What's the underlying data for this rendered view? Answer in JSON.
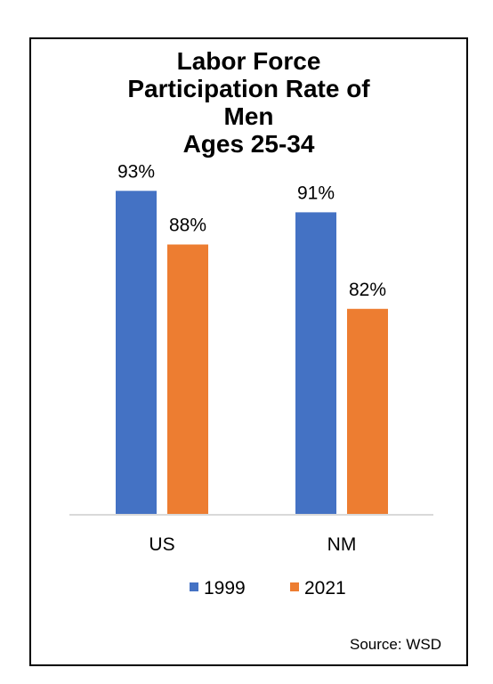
{
  "chart_data": {
    "type": "bar",
    "title_lines": [
      "Labor Force",
      "Participation Rate of",
      "Men",
      "Ages 25-34"
    ],
    "categories": [
      "US",
      "NM"
    ],
    "series": [
      {
        "name": "1999",
        "values": [
          93,
          91
        ],
        "labels": [
          "93%",
          "91%"
        ],
        "color": "#4472C4"
      },
      {
        "name": "2021",
        "values": [
          88,
          82
        ],
        "labels": [
          "88%",
          "82%"
        ],
        "color": "#ED7D31"
      }
    ],
    "ylim": [
      62.8,
      100
    ],
    "legend_position": "bottom",
    "grid": false,
    "axis_color": "#D9D9D9"
  },
  "source": "Source: WSD"
}
